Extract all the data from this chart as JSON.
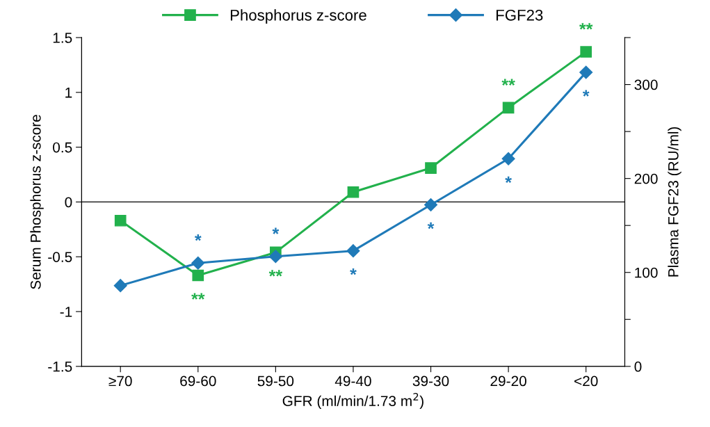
{
  "chart_data": {
    "type": "line",
    "xlabel": "GFR (ml/min/1.73 m$^{2}$)",
    "ylabel": "Serum Phosphorus z-score",
    "y2label": "Plasma FGF23 (RU/ml)",
    "categories": [
      "≥70",
      "69-60",
      "59-50",
      "49-40",
      "39-30",
      "29-20",
      "<20"
    ],
    "series": [
      {
        "name": "Phosphorus z-score",
        "color": "#22b14c",
        "marker": "square",
        "values": [
          -0.17,
          -0.67,
          -0.46,
          0.09,
          0.31,
          0.86,
          1.37
        ],
        "value_labels": [
          null,
          "**",
          "**",
          null,
          null,
          "**",
          "**"
        ]
      },
      {
        "name": "FGF23",
        "color": "#1f7ab8",
        "marker": "diamond",
        "axis": "y2",
        "values": [
          86,
          110,
          117,
          123,
          172,
          221,
          313
        ],
        "value_labels": [
          null,
          "*",
          "*",
          "*",
          "*",
          "*",
          "*"
        ]
      }
    ],
    "ylim": [
      -1.5,
      1.5
    ],
    "yticks": [
      -1.5,
      -1,
      -0.5,
      0,
      0.5,
      1,
      1.5
    ],
    "y2lim": [
      0,
      350
    ],
    "y2ticks": [
      0,
      {
        "value": 50,
        "label": null
      },
      100,
      {
        "value": 150,
        "label": null
      },
      200,
      {
        "value": 250,
        "label": null
      },
      300,
      {
        "value": 350,
        "label": null
      }
    ],
    "ref_lines": [
      {
        "axis": "y",
        "value": 0,
        "color": "#000000"
      }
    ],
    "grid": false,
    "legend": "top",
    "line_style": "solid"
  }
}
